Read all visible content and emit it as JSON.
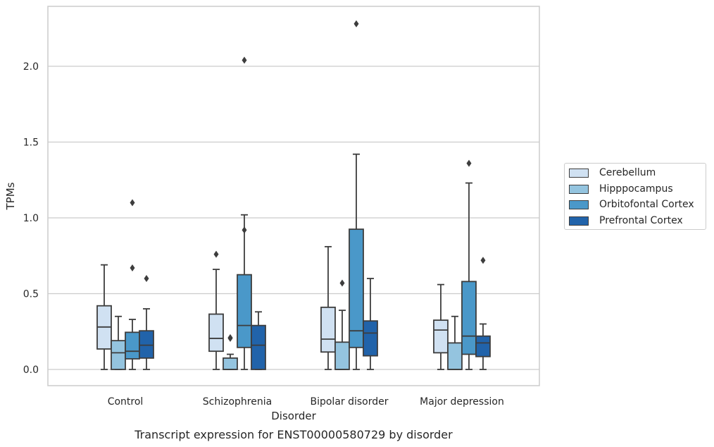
{
  "caption": "Transcript expression for ENST00000580729 by disorder",
  "chart_data": {
    "type": "box",
    "xlabel": "Disorder",
    "ylabel": "TPMs",
    "ylim": [
      -0.11,
      2.41
    ],
    "yticks": [
      0.0,
      0.5,
      1.0,
      1.5,
      2.0
    ],
    "ytick_labels": [
      "0.0",
      "0.5",
      "1.0",
      "1.5",
      "2.0"
    ],
    "grid": "horizontal",
    "legend_position": "right",
    "categories": [
      "Control",
      "Schizophrenia",
      "Bipolar disorder",
      "Major depression"
    ],
    "series": [
      {
        "name": "Cerebellum",
        "color": "#d0e1f2",
        "boxes": [
          {
            "whislo": 0.0,
            "q1": 0.135,
            "med": 0.28,
            "q3": 0.42,
            "whishi": 0.69,
            "fliers": []
          },
          {
            "whislo": 0.0,
            "q1": 0.12,
            "med": 0.205,
            "q3": 0.365,
            "whishi": 0.66,
            "fliers": [
              0.76
            ]
          },
          {
            "whislo": 0.0,
            "q1": 0.115,
            "med": 0.2,
            "q3": 0.41,
            "whishi": 0.81,
            "fliers": []
          },
          {
            "whislo": 0.0,
            "q1": 0.11,
            "med": 0.26,
            "q3": 0.325,
            "whishi": 0.56,
            "fliers": []
          }
        ]
      },
      {
        "name": "Hipppocampus",
        "color": "#94c4df",
        "boxes": [
          {
            "whislo": 0.0,
            "q1": 0.0,
            "med": 0.11,
            "q3": 0.19,
            "whishi": 0.35,
            "fliers": []
          },
          {
            "whislo": 0.0,
            "q1": 0.0,
            "med": 0.0,
            "q3": 0.075,
            "whishi": 0.1,
            "fliers": [
              0.205,
              0.21
            ]
          },
          {
            "whislo": 0.0,
            "q1": 0.0,
            "med": 0.0,
            "q3": 0.18,
            "whishi": 0.39,
            "fliers": [
              0.57
            ]
          },
          {
            "whislo": 0.0,
            "q1": 0.0,
            "med": 0.0,
            "q3": 0.175,
            "whishi": 0.35,
            "fliers": []
          }
        ]
      },
      {
        "name": "Orbitofontal Cortex",
        "color": "#4a98c9",
        "boxes": [
          {
            "whislo": 0.0,
            "q1": 0.07,
            "med": 0.12,
            "q3": 0.245,
            "whishi": 0.33,
            "fliers": [
              0.67,
              1.1
            ]
          },
          {
            "whislo": 0.0,
            "q1": 0.145,
            "med": 0.29,
            "q3": 0.625,
            "whishi": 1.02,
            "fliers": [
              0.92,
              2.04
            ]
          },
          {
            "whislo": 0.0,
            "q1": 0.145,
            "med": 0.255,
            "q3": 0.925,
            "whishi": 1.42,
            "fliers": [
              2.28
            ]
          },
          {
            "whislo": 0.0,
            "q1": 0.1,
            "med": 0.22,
            "q3": 0.58,
            "whishi": 1.23,
            "fliers": [
              1.36
            ]
          }
        ]
      },
      {
        "name": "Prefrontal Cortex",
        "color": "#2163aa",
        "boxes": [
          {
            "whislo": 0.0,
            "q1": 0.075,
            "med": 0.16,
            "q3": 0.255,
            "whishi": 0.4,
            "fliers": [
              0.6
            ]
          },
          {
            "whislo": 0.0,
            "q1": 0.0,
            "med": 0.16,
            "q3": 0.29,
            "whishi": 0.38,
            "fliers": []
          },
          {
            "whislo": 0.0,
            "q1": 0.09,
            "med": 0.24,
            "q3": 0.32,
            "whishi": 0.6,
            "fliers": []
          },
          {
            "whislo": 0.0,
            "q1": 0.085,
            "med": 0.175,
            "q3": 0.22,
            "whishi": 0.3,
            "fliers": [
              0.72
            ]
          }
        ]
      }
    ]
  }
}
